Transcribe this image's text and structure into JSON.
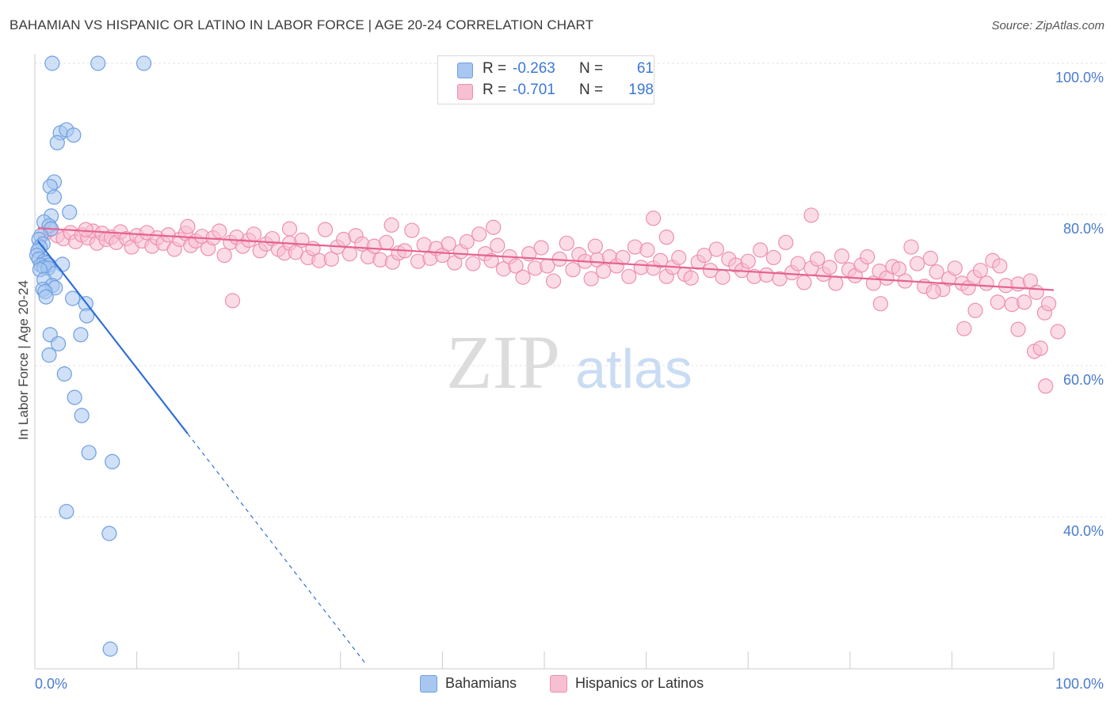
{
  "title": "BAHAMIAN VS HISPANIC OR LATINO IN LABOR FORCE | AGE 20-24 CORRELATION CHART",
  "source": "Source: ZipAtlas.com",
  "watermark": {
    "zip": "ZIP",
    "atlas": "atlas"
  },
  "legend": {
    "rows": [
      {
        "r_label": "R =",
        "r_value": "-0.263",
        "n_label": "N =",
        "n_value": "61",
        "color": "#a8c6f0",
        "stroke": "#6f9fe0"
      },
      {
        "r_label": "R =",
        "r_value": "-0.701",
        "n_label": "N =",
        "n_value": "198",
        "color": "#f7bfd2",
        "stroke": "#ee8fb0"
      }
    ]
  },
  "bottom_legend": [
    {
      "label": "Bahamians",
      "color": "#a8c6f0",
      "stroke": "#6f9fe0"
    },
    {
      "label": "Hispanics or Latinos",
      "color": "#f7bfd2",
      "stroke": "#ee8fb0"
    }
  ],
  "chart_data": {
    "type": "scatter",
    "title": "BAHAMIAN VS HISPANIC OR LATINO IN LABOR FORCE | AGE 20-24 CORRELATION CHART",
    "xlabel": "",
    "ylabel": "In Labor Force | Age 20-24",
    "xlim": [
      0,
      100
    ],
    "ylim": [
      20,
      102
    ],
    "x_tick_labels": [
      {
        "value": 0,
        "label": "0.0%"
      },
      {
        "value": 100,
        "label": "100.0%"
      }
    ],
    "y_tick_labels": [
      {
        "value": 100,
        "label": "100.0%"
      },
      {
        "value": 80,
        "label": "80.0%"
      },
      {
        "value": 60,
        "label": "60.0%"
      },
      {
        "value": 40,
        "label": "40.0%"
      }
    ],
    "grid": true,
    "series": [
      {
        "name": "Bahamians",
        "color": "#a8c6f0",
        "stroke": "#6f9fe0",
        "trend_color": "#2f6fd6",
        "trend": {
          "x0": 0.3,
          "y0": 76.5,
          "x1": 15.0,
          "y1": 51.0,
          "dash_to_x": 32.5,
          "dash_to_y": 20.5
        },
        "points": [
          [
            1.7,
            100
          ],
          [
            6.2,
            100
          ],
          [
            10.7,
            100
          ],
          [
            2.5,
            90.8
          ],
          [
            3.1,
            91.2
          ],
          [
            3.8,
            90.5
          ],
          [
            2.2,
            89.5
          ],
          [
            1.9,
            84.3
          ],
          [
            1.5,
            83.7
          ],
          [
            1.9,
            82.3
          ],
          [
            1.6,
            79.8
          ],
          [
            3.4,
            80.3
          ],
          [
            0.9,
            79.0
          ],
          [
            1.4,
            78.5
          ],
          [
            1.6,
            78.1
          ],
          [
            0.6,
            77.2
          ],
          [
            0.4,
            76.7
          ],
          [
            0.8,
            76.1
          ],
          [
            0.5,
            75.7
          ],
          [
            0.3,
            75.2
          ],
          [
            0.2,
            74.6
          ],
          [
            0.4,
            74.1
          ],
          [
            0.9,
            73.8
          ],
          [
            1.1,
            73.6
          ],
          [
            0.6,
            73.3
          ],
          [
            1.4,
            73.3
          ],
          [
            0.9,
            73.0
          ],
          [
            1.3,
            72.9
          ],
          [
            0.5,
            72.7
          ],
          [
            2.7,
            73.4
          ],
          [
            2.0,
            72.2
          ],
          [
            0.9,
            71.4
          ],
          [
            1.7,
            70.6
          ],
          [
            2.0,
            70.3
          ],
          [
            0.8,
            70.1
          ],
          [
            1.0,
            69.8
          ],
          [
            1.1,
            69.1
          ],
          [
            3.7,
            68.9
          ],
          [
            5.0,
            68.2
          ],
          [
            5.1,
            66.6
          ],
          [
            1.5,
            64.1
          ],
          [
            4.5,
            64.1
          ],
          [
            2.3,
            62.9
          ],
          [
            1.4,
            61.4
          ],
          [
            2.9,
            58.9
          ],
          [
            3.9,
            55.8
          ],
          [
            4.6,
            53.4
          ],
          [
            5.3,
            48.5
          ],
          [
            7.6,
            47.3
          ],
          [
            3.1,
            40.7
          ],
          [
            7.3,
            37.8
          ],
          [
            7.4,
            22.5
          ]
        ]
      },
      {
        "name": "Hispanics or Latinos",
        "color": "#f7bfd2",
        "stroke": "#ee8fb0",
        "trend_color": "#e6628f",
        "trend": {
          "x0": 0.3,
          "y0": 78.2,
          "x1": 100,
          "y1": 70.0
        },
        "points": [
          [
            1.0,
            77.5
          ],
          [
            1.5,
            78.0
          ],
          [
            2.2,
            77.2
          ],
          [
            2.8,
            76.8
          ],
          [
            3.5,
            77.6
          ],
          [
            4.0,
            76.4
          ],
          [
            4.6,
            77.3
          ],
          [
            5.2,
            76.9
          ],
          [
            5.7,
            77.8
          ],
          [
            6.1,
            76.2
          ],
          [
            6.6,
            77.5
          ],
          [
            7.0,
            76.7
          ],
          [
            7.5,
            77.0
          ],
          [
            8.0,
            76.3
          ],
          [
            8.4,
            77.7
          ],
          [
            9.0,
            76.8
          ],
          [
            9.5,
            75.7
          ],
          [
            10.0,
            77.2
          ],
          [
            10.5,
            76.5
          ],
          [
            11.0,
            77.6
          ],
          [
            11.5,
            75.8
          ],
          [
            12.0,
            76.9
          ],
          [
            12.6,
            76.2
          ],
          [
            13.1,
            77.3
          ],
          [
            13.7,
            75.4
          ],
          [
            14.2,
            76.7
          ],
          [
            14.8,
            77.5
          ],
          [
            15.3,
            75.9
          ],
          [
            15.8,
            76.5
          ],
          [
            16.4,
            77.1
          ],
          [
            17.0,
            75.5
          ],
          [
            17.5,
            76.9
          ],
          [
            18.1,
            77.8
          ],
          [
            18.6,
            74.6
          ],
          [
            19.2,
            76.3
          ],
          [
            19.8,
            77.0
          ],
          [
            20.4,
            75.8
          ],
          [
            21.0,
            76.6
          ],
          [
            21.5,
            77.4
          ],
          [
            22.1,
            75.2
          ],
          [
            22.7,
            76.1
          ],
          [
            23.3,
            76.8
          ],
          [
            23.9,
            75.4
          ],
          [
            24.5,
            74.9
          ],
          [
            25.0,
            76.2
          ],
          [
            25.6,
            75.0
          ],
          [
            26.2,
            76.6
          ],
          [
            26.8,
            74.3
          ],
          [
            27.3,
            75.5
          ],
          [
            27.9,
            73.9
          ],
          [
            28.5,
            78.0
          ],
          [
            29.1,
            74.1
          ],
          [
            29.7,
            75.7
          ],
          [
            30.3,
            76.7
          ],
          [
            30.9,
            74.8
          ],
          [
            31.5,
            77.2
          ],
          [
            32.1,
            76.1
          ],
          [
            32.7,
            74.4
          ],
          [
            33.3,
            75.8
          ],
          [
            33.9,
            74.0
          ],
          [
            34.5,
            76.3
          ],
          [
            35.1,
            73.7
          ],
          [
            35.7,
            74.9
          ],
          [
            36.3,
            75.2
          ],
          [
            37.0,
            77.9
          ],
          [
            37.6,
            73.8
          ],
          [
            38.2,
            76.0
          ],
          [
            38.8,
            74.2
          ],
          [
            39.4,
            75.5
          ],
          [
            40.0,
            74.6
          ],
          [
            40.6,
            76.1
          ],
          [
            41.2,
            73.6
          ],
          [
            41.8,
            75.1
          ],
          [
            42.4,
            76.4
          ],
          [
            43.0,
            73.5
          ],
          [
            43.6,
            77.4
          ],
          [
            44.2,
            74.8
          ],
          [
            44.8,
            73.9
          ],
          [
            45.4,
            75.9
          ],
          [
            46.0,
            72.8
          ],
          [
            46.6,
            74.4
          ],
          [
            47.2,
            73.2
          ],
          [
            47.9,
            71.7
          ],
          [
            48.5,
            74.8
          ],
          [
            49.1,
            72.9
          ],
          [
            49.7,
            75.6
          ],
          [
            50.3,
            73.2
          ],
          [
            50.9,
            71.2
          ],
          [
            51.5,
            74.1
          ],
          [
            52.2,
            76.2
          ],
          [
            52.8,
            72.7
          ],
          [
            53.4,
            74.7
          ],
          [
            54.0,
            73.8
          ],
          [
            54.6,
            71.5
          ],
          [
            55.2,
            74.0
          ],
          [
            55.8,
            72.5
          ],
          [
            56.4,
            74.4
          ],
          [
            57.1,
            73.2
          ],
          [
            57.7,
            74.3
          ],
          [
            58.3,
            71.8
          ],
          [
            58.9,
            75.7
          ],
          [
            59.5,
            73.0
          ],
          [
            60.1,
            75.3
          ],
          [
            60.7,
            72.9
          ],
          [
            61.4,
            73.9
          ],
          [
            62.0,
            71.8
          ],
          [
            62.6,
            73.0
          ],
          [
            63.2,
            74.3
          ],
          [
            63.8,
            72.1
          ],
          [
            64.4,
            71.6
          ],
          [
            65.1,
            73.7
          ],
          [
            65.7,
            74.6
          ],
          [
            66.3,
            72.6
          ],
          [
            66.9,
            75.4
          ],
          [
            67.5,
            71.7
          ],
          [
            68.1,
            74.1
          ],
          [
            68.8,
            73.3
          ],
          [
            69.4,
            72.6
          ],
          [
            70.0,
            73.8
          ],
          [
            70.6,
            71.8
          ],
          [
            71.2,
            75.3
          ],
          [
            71.8,
            72.0
          ],
          [
            72.5,
            74.3
          ],
          [
            73.1,
            71.5
          ],
          [
            73.7,
            76.3
          ],
          [
            74.3,
            72.3
          ],
          [
            74.9,
            73.5
          ],
          [
            75.5,
            71.0
          ],
          [
            76.2,
            72.9
          ],
          [
            76.8,
            74.1
          ],
          [
            77.4,
            72.1
          ],
          [
            78.0,
            73.0
          ],
          [
            78.6,
            70.9
          ],
          [
            79.2,
            74.5
          ],
          [
            79.9,
            72.7
          ],
          [
            80.5,
            71.9
          ],
          [
            81.1,
            73.3
          ],
          [
            81.7,
            74.4
          ],
          [
            82.3,
            70.9
          ],
          [
            82.9,
            72.5
          ],
          [
            83.6,
            71.6
          ],
          [
            84.2,
            73.1
          ],
          [
            84.8,
            72.8
          ],
          [
            85.4,
            71.2
          ],
          [
            86.0,
            75.7
          ],
          [
            86.6,
            73.5
          ],
          [
            87.3,
            70.5
          ],
          [
            87.9,
            74.2
          ],
          [
            88.5,
            72.4
          ],
          [
            89.1,
            70.1
          ],
          [
            89.7,
            71.5
          ],
          [
            90.3,
            72.9
          ],
          [
            91.0,
            70.9
          ],
          [
            91.6,
            70.3
          ],
          [
            92.2,
            71.7
          ],
          [
            92.8,
            72.6
          ],
          [
            93.4,
            70.9
          ],
          [
            94.0,
            73.9
          ],
          [
            94.7,
            73.2
          ],
          [
            95.3,
            70.6
          ],
          [
            95.9,
            68.1
          ],
          [
            96.5,
            70.8
          ],
          [
            97.1,
            68.4
          ],
          [
            97.7,
            71.2
          ],
          [
            98.3,
            69.7
          ],
          [
            19.4,
            68.6
          ],
          [
            60.7,
            79.5
          ],
          [
            76.2,
            79.9
          ],
          [
            83.0,
            68.2
          ],
          [
            88.2,
            69.8
          ],
          [
            91.2,
            64.9
          ],
          [
            92.3,
            67.3
          ],
          [
            94.5,
            68.4
          ],
          [
            96.5,
            64.8
          ],
          [
            98.1,
            61.9
          ],
          [
            98.7,
            62.3
          ],
          [
            99.1,
            67.0
          ],
          [
            99.5,
            68.2
          ],
          [
            100.4,
            64.5
          ],
          [
            99.2,
            57.3
          ],
          [
            62.0,
            77.0
          ],
          [
            55.0,
            75.8
          ],
          [
            45.0,
            78.3
          ],
          [
            35.0,
            78.6
          ],
          [
            25.0,
            78.1
          ],
          [
            15.0,
            78.4
          ],
          [
            5.0,
            78.0
          ]
        ]
      }
    ]
  }
}
